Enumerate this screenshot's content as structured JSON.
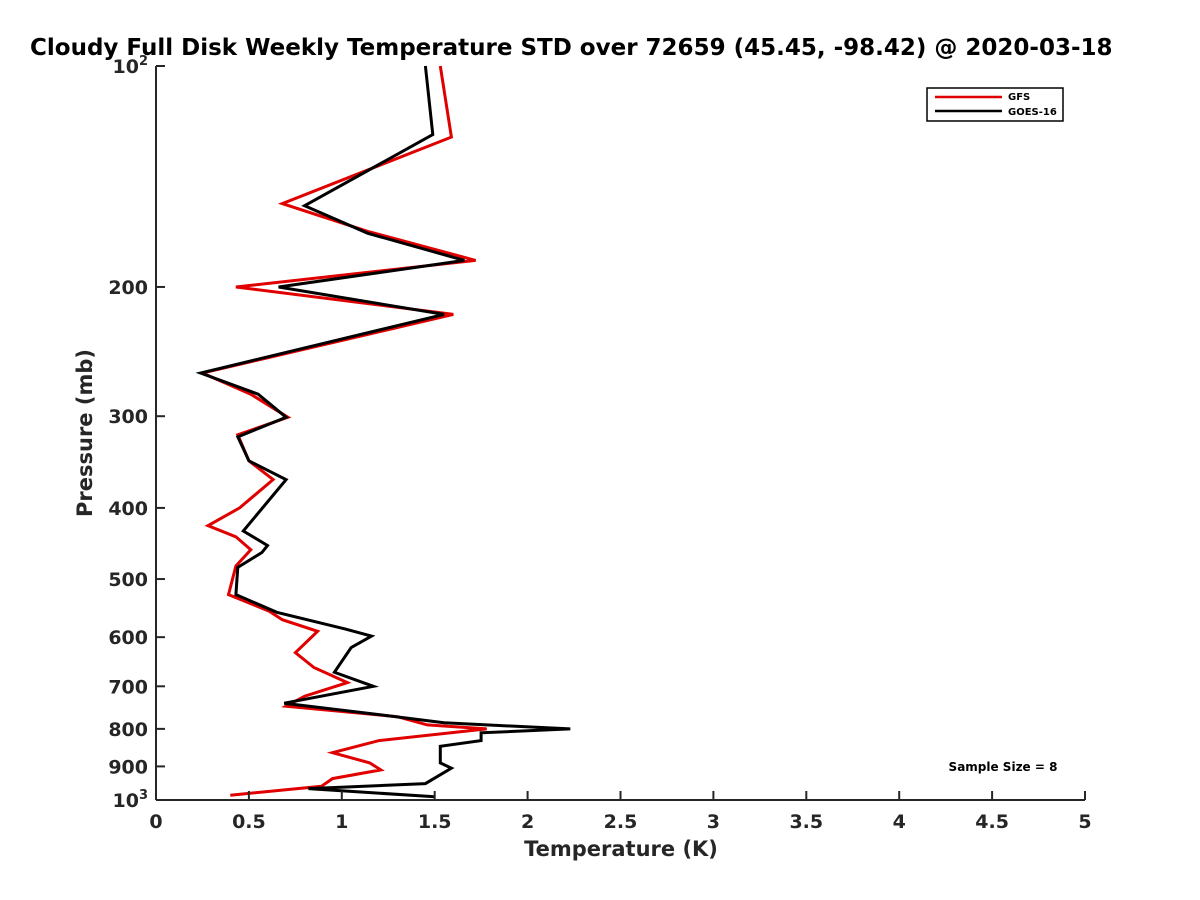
{
  "chart_data": {
    "type": "line",
    "title": "Cloudy Full Disk Weekly Temperature STD over 72659 (45.45, -98.42) @ 2020-03-18",
    "xlabel": "Temperature (K)",
    "ylabel": "Pressure (mb)",
    "xlim": [
      0,
      5
    ],
    "ylim": [
      1000,
      100
    ],
    "yscale": "log",
    "y_reversed": true,
    "grid": false,
    "legend_position": "top-right",
    "x_ticks": [
      0,
      0.5,
      1,
      1.5,
      2,
      2.5,
      3,
      3.5,
      4,
      4.5,
      5
    ],
    "x_tick_labels": [
      "0",
      "0.5",
      "1",
      "1.5",
      "2",
      "2.5",
      "3",
      "3.5",
      "4",
      "4.5",
      "5"
    ],
    "y_ticks": [
      100,
      200,
      300,
      400,
      500,
      600,
      700,
      800,
      900,
      1000
    ],
    "y_tick_labels": [
      {
        "base": "10",
        "sup": "2"
      },
      {
        "base": "200",
        "sup": ""
      },
      {
        "base": "300",
        "sup": ""
      },
      {
        "base": "400",
        "sup": ""
      },
      {
        "base": "500",
        "sup": ""
      },
      {
        "base": "600",
        "sup": ""
      },
      {
        "base": "700",
        "sup": ""
      },
      {
        "base": "800",
        "sup": ""
      },
      {
        "base": "900",
        "sup": ""
      },
      {
        "base": "10",
        "sup": "3"
      }
    ],
    "annotation": "Sample Size = 8",
    "series": [
      {
        "name": "GFS",
        "color": "#e00000",
        "points": [
          {
            "x": 1.53,
            "y": 100
          },
          {
            "x": 1.59,
            "y": 125
          },
          {
            "x": 0.68,
            "y": 154
          },
          {
            "x": 1.14,
            "y": 168
          },
          {
            "x": 1.72,
            "y": 184
          },
          {
            "x": 0.43,
            "y": 200
          },
          {
            "x": 1.6,
            "y": 218
          },
          {
            "x": 0.25,
            "y": 262
          },
          {
            "x": 0.51,
            "y": 280
          },
          {
            "x": 0.71,
            "y": 301
          },
          {
            "x": 0.44,
            "y": 318
          },
          {
            "x": 0.5,
            "y": 345
          },
          {
            "x": 0.63,
            "y": 366
          },
          {
            "x": 0.45,
            "y": 400
          },
          {
            "x": 0.28,
            "y": 423
          },
          {
            "x": 0.43,
            "y": 438
          },
          {
            "x": 0.51,
            "y": 456
          },
          {
            "x": 0.43,
            "y": 480
          },
          {
            "x": 0.39,
            "y": 525
          },
          {
            "x": 0.61,
            "y": 553
          },
          {
            "x": 0.68,
            "y": 568
          },
          {
            "x": 0.87,
            "y": 589
          },
          {
            "x": 0.75,
            "y": 630
          },
          {
            "x": 0.85,
            "y": 660
          },
          {
            "x": 1.03,
            "y": 692
          },
          {
            "x": 0.8,
            "y": 722
          },
          {
            "x": 0.7,
            "y": 745
          },
          {
            "x": 1.3,
            "y": 770
          },
          {
            "x": 1.46,
            "y": 790
          },
          {
            "x": 1.78,
            "y": 800
          },
          {
            "x": 1.2,
            "y": 830
          },
          {
            "x": 0.95,
            "y": 862
          },
          {
            "x": 1.15,
            "y": 890
          },
          {
            "x": 1.21,
            "y": 910
          },
          {
            "x": 0.95,
            "y": 935
          },
          {
            "x": 0.89,
            "y": 958
          },
          {
            "x": 0.4,
            "y": 985
          }
        ]
      },
      {
        "name": "GOES-16",
        "color": "#000000",
        "points": [
          {
            "x": 1.45,
            "y": 100
          },
          {
            "x": 1.49,
            "y": 124
          },
          {
            "x": 0.8,
            "y": 155
          },
          {
            "x": 1.14,
            "y": 169
          },
          {
            "x": 1.66,
            "y": 184
          },
          {
            "x": 0.66,
            "y": 200
          },
          {
            "x": 1.55,
            "y": 218
          },
          {
            "x": 0.24,
            "y": 262
          },
          {
            "x": 0.55,
            "y": 280
          },
          {
            "x": 0.7,
            "y": 301
          },
          {
            "x": 0.44,
            "y": 320
          },
          {
            "x": 0.5,
            "y": 345
          },
          {
            "x": 0.7,
            "y": 366
          },
          {
            "x": 0.47,
            "y": 430
          },
          {
            "x": 0.6,
            "y": 450
          },
          {
            "x": 0.57,
            "y": 460
          },
          {
            "x": 0.44,
            "y": 482
          },
          {
            "x": 0.43,
            "y": 525
          },
          {
            "x": 0.65,
            "y": 555
          },
          {
            "x": 1.02,
            "y": 585
          },
          {
            "x": 1.16,
            "y": 598
          },
          {
            "x": 1.05,
            "y": 620
          },
          {
            "x": 0.96,
            "y": 670
          },
          {
            "x": 1.17,
            "y": 700
          },
          {
            "x": 0.69,
            "y": 738
          },
          {
            "x": 1.2,
            "y": 765
          },
          {
            "x": 1.55,
            "y": 785
          },
          {
            "x": 2.23,
            "y": 800
          },
          {
            "x": 1.75,
            "y": 810
          },
          {
            "x": 1.75,
            "y": 830
          },
          {
            "x": 1.53,
            "y": 845
          },
          {
            "x": 1.53,
            "y": 890
          },
          {
            "x": 1.59,
            "y": 905
          },
          {
            "x": 1.45,
            "y": 950
          },
          {
            "x": 0.82,
            "y": 965
          },
          {
            "x": 1.5,
            "y": 990
          }
        ]
      }
    ]
  }
}
